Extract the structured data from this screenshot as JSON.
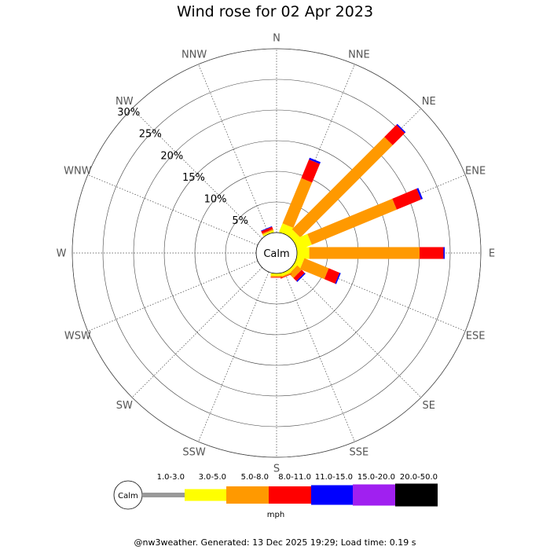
{
  "title": "Wind rose for 02 Apr 2023",
  "footer": "@nw3weather. Generated: 13 Dec 2025 19:29; Load time: 0.19 s",
  "chart_data": {
    "type": "windrose",
    "title": "Wind rose for 02 Apr 2023",
    "directions": [
      "N",
      "NNE",
      "NE",
      "ENE",
      "E",
      "ESE",
      "SE",
      "SSE",
      "S",
      "SSW",
      "SW",
      "WSW",
      "W",
      "WNW",
      "NW",
      "NNW"
    ],
    "radial_ticks": [
      "5%",
      "10%",
      "15%",
      "20%",
      "25%",
      "30%"
    ],
    "radial_tick_values": [
      5,
      10,
      15,
      20,
      25,
      30
    ],
    "calm_label": "Calm",
    "unit": "mph",
    "speed_bins": [
      {
        "label": "1.0-3.0",
        "color": "#999999"
      },
      {
        "label": "3.0-5.0",
        "color": "#ffff00"
      },
      {
        "label": "5.0-8.0",
        "color": "#ff9900"
      },
      {
        "label": "8.0-11.0",
        "color": "#ff0000"
      },
      {
        "label": "11.0-15.0",
        "color": "#0000ff"
      },
      {
        "label": "15.0-20.0",
        "color": "#a020f0"
      },
      {
        "label": "20.0-50.0",
        "color": "#000000"
      }
    ],
    "cumulative_percent": {
      "N": [
        0.0,
        0.0,
        0.0,
        0.0,
        0.0,
        0.0,
        0.0
      ],
      "NNE": [
        0.0,
        1.5,
        9.5,
        12.8,
        13.1,
        13.1,
        13.1
      ],
      "NE": [
        0.0,
        1.2,
        22.5,
        25.3,
        25.5,
        25.5,
        25.5
      ],
      "ENE": [
        0.0,
        2.5,
        17.5,
        21.8,
        22.1,
        22.1,
        22.1
      ],
      "E": [
        0.0,
        2.0,
        20.0,
        23.9,
        24.1,
        24.1,
        24.1
      ],
      "ESE": [
        0.0,
        1.2,
        5.5,
        7.4,
        7.6,
        7.6,
        7.6
      ],
      "SE": [
        0.0,
        0.5,
        1.5,
        2.2,
        2.4,
        2.4,
        2.4
      ],
      "SSE": [
        0.0,
        0.5,
        0.7,
        0.8,
        0.8,
        0.8,
        0.8
      ],
      "S": [
        0.0,
        0.4,
        0.6,
        0.7,
        0.7,
        0.7,
        0.7
      ],
      "SSW": [
        0.0,
        0.0,
        0.0,
        0.0,
        0.0,
        0.0,
        0.0
      ],
      "SW": [
        0.0,
        0.0,
        0.0,
        0.0,
        0.0,
        0.0,
        0.0
      ],
      "WSW": [
        0.0,
        0.0,
        0.0,
        0.0,
        0.0,
        0.0,
        0.0
      ],
      "W": [
        0.0,
        0.0,
        0.0,
        0.0,
        0.0,
        0.0,
        0.0
      ],
      "WNW": [
        0.0,
        0.0,
        0.0,
        0.0,
        0.0,
        0.0,
        0.0
      ],
      "NW": [
        0.0,
        0.0,
        0.0,
        0.0,
        0.0,
        0.0,
        0.0
      ],
      "NNW": [
        0.0,
        0.3,
        0.5,
        0.9,
        1.0,
        1.0,
        1.0
      ]
    },
    "rmax": 30,
    "grid": true
  }
}
